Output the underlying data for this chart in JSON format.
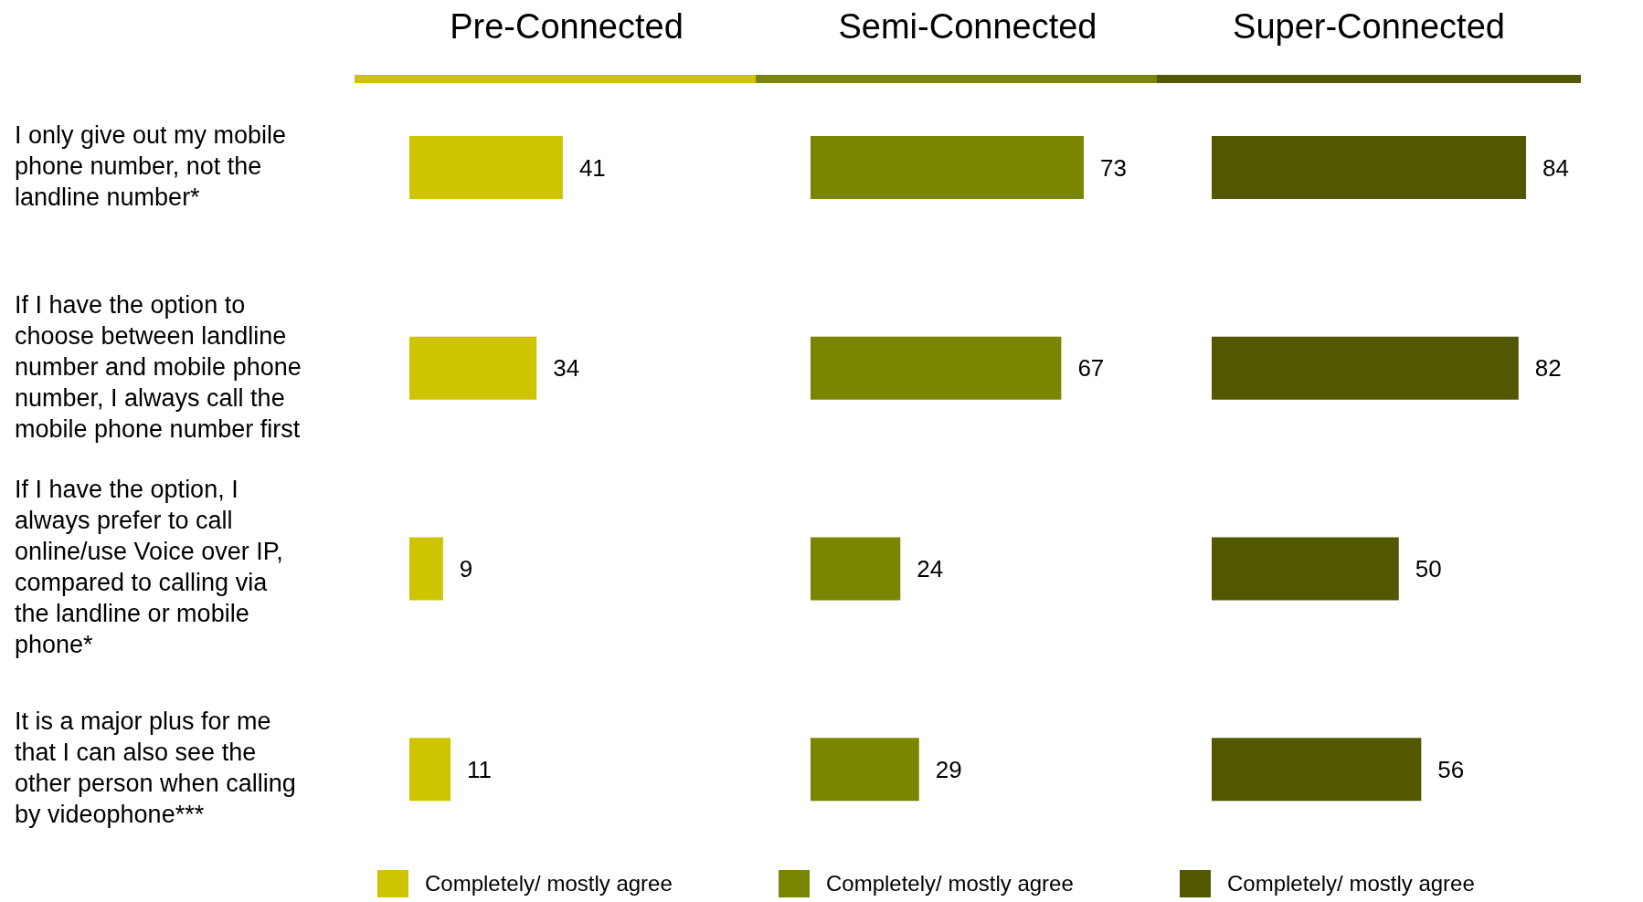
{
  "chart_data": [
    {
      "type": "bar",
      "orientation": "horizontal",
      "title": "Pre-Connected",
      "categories": [
        "I only give out my mobile phone number, not the landline number*",
        "If I have the option to choose between landline number and mobile phone number, I always call the mobile phone number first",
        "If I have the option, I always prefer to call online/use Voice over IP, compared to calling via the landline or mobile phone*",
        "It is a major plus for me that I can also see the other person when calling by videophone***"
      ],
      "series": [
        {
          "name": "Completely/ mostly agree",
          "color": "#cfc400",
          "values": [
            41,
            34,
            9,
            11
          ]
        }
      ],
      "data_labels": true,
      "tick_labels": "y",
      "legend": "bottom",
      "grid": false
    },
    {
      "type": "bar",
      "orientation": "horizontal",
      "title": "Semi-Connected",
      "categories": [
        null,
        null,
        null,
        null
      ],
      "series": [
        {
          "name": "Completely/ mostly agree",
          "color": "#7a8500",
          "values": [
            73,
            67,
            24,
            29
          ]
        }
      ],
      "data_labels": true,
      "tick_labels": false,
      "legend": "bottom",
      "grid": false
    },
    {
      "type": "bar",
      "orientation": "horizontal",
      "title": "Super-Connected",
      "categories": [
        null,
        null,
        null,
        null
      ],
      "series": [
        {
          "name": "Completely/ mostly agree",
          "color": "#525800",
          "values": [
            84,
            82,
            50,
            56
          ]
        }
      ],
      "data_labels": true,
      "tick_labels": false,
      "legend": "bottom",
      "grid": false
    }
  ]
}
